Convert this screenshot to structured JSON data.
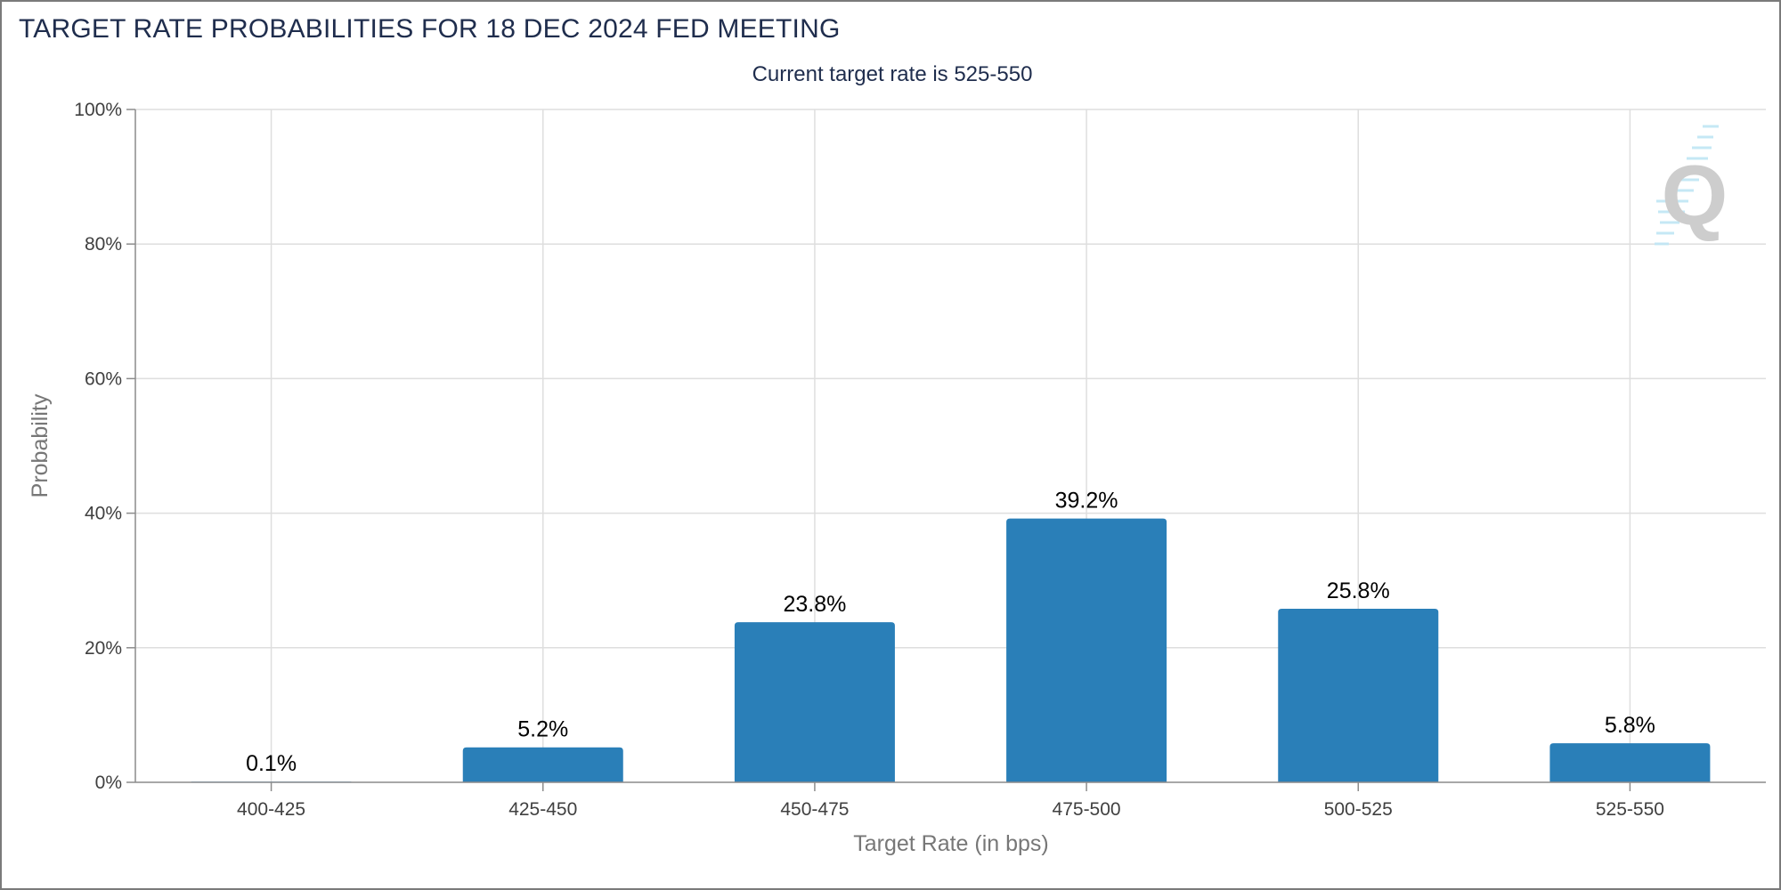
{
  "chart_data": {
    "type": "bar",
    "title": "TARGET RATE PROBABILITIES FOR 18 DEC 2024 FED MEETING",
    "subtitle": "Current target rate is 525-550",
    "xlabel": "Target Rate (in bps)",
    "ylabel": "Probability",
    "categories": [
      "400-425",
      "425-450",
      "450-475",
      "475-500",
      "500-525",
      "525-550"
    ],
    "values": [
      0.1,
      5.2,
      23.8,
      39.2,
      25.8,
      5.8
    ],
    "value_labels": [
      "0.1%",
      "5.2%",
      "23.8%",
      "39.2%",
      "25.8%",
      "5.8%"
    ],
    "yticks": [
      "0%",
      "20%",
      "40%",
      "60%",
      "80%",
      "100%"
    ],
    "ytick_values": [
      0,
      20,
      40,
      60,
      80,
      100
    ],
    "ylim": [
      0,
      100
    ],
    "grid": true,
    "bar_color": "#2a7fb8",
    "watermark": "Q"
  }
}
